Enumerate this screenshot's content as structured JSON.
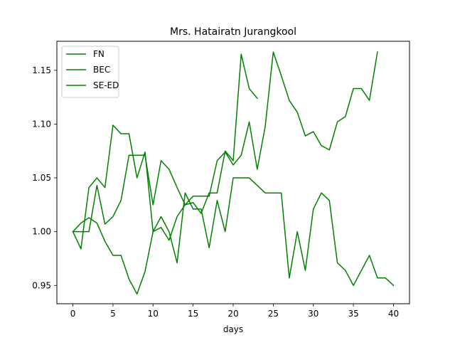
{
  "chart_data": {
    "type": "line",
    "title": "Mrs. Hatairatn Jurangkool",
    "xlabel": "days",
    "ylabel": "",
    "xlim": [
      -2,
      42
    ],
    "ylim": [
      0.933,
      1.177
    ],
    "xticks": [
      0,
      5,
      10,
      15,
      20,
      25,
      30,
      35,
      40
    ],
    "yticks": [
      0.95,
      1.0,
      1.05,
      1.1,
      1.15
    ],
    "ytick_labels": [
      "0.95",
      "1.00",
      "1.05",
      "1.10",
      "1.15"
    ],
    "grid": false,
    "legend_position": "upper-left",
    "line_color": "#008000",
    "series": [
      {
        "name": "FN",
        "x": [
          0,
          1,
          2,
          3,
          4,
          5,
          6,
          7,
          8,
          9,
          10,
          11,
          12,
          13,
          14,
          15,
          16,
          17,
          18,
          19,
          20,
          21,
          22,
          23
        ],
        "values": [
          1.0,
          1.0,
          1.0,
          1.043,
          1.007,
          1.014,
          1.029,
          1.071,
          1.071,
          1.071,
          1.025,
          1.066,
          1.058,
          1.041,
          1.025,
          1.027,
          1.017,
          1.036,
          1.036,
          1.075,
          1.066,
          1.165,
          1.133,
          1.124
        ]
      },
      {
        "name": "BEC",
        "x": [
          0,
          1,
          2,
          3,
          4,
          5,
          6,
          7,
          8,
          9,
          10,
          11,
          12,
          13,
          14,
          15,
          16,
          17,
          18,
          19,
          20,
          21,
          22,
          23,
          24,
          25,
          26,
          27,
          28,
          29,
          30,
          31,
          32,
          33,
          34,
          35,
          36,
          37,
          38
        ],
        "values": [
          1.0,
          0.984,
          1.041,
          1.05,
          1.041,
          1.099,
          1.091,
          1.091,
          1.05,
          1.074,
          1.0,
          1.004,
          0.992,
          1.014,
          1.025,
          1.033,
          1.033,
          1.033,
          1.066,
          1.074,
          1.062,
          1.071,
          1.102,
          1.058,
          1.098,
          1.167,
          1.145,
          1.122,
          1.111,
          1.089,
          1.093,
          1.08,
          1.076,
          1.102,
          1.107,
          1.133,
          1.133,
          1.122,
          1.167
        ]
      },
      {
        "name": "SE-ED",
        "x": [
          0,
          1,
          2,
          3,
          4,
          5,
          6,
          7,
          8,
          9,
          10,
          11,
          12,
          13,
          14,
          15,
          16,
          17,
          18,
          19,
          20,
          21,
          22,
          23,
          24,
          25,
          26,
          27,
          28,
          29,
          30,
          31,
          32,
          33,
          34,
          35,
          36,
          37,
          38,
          39,
          40
        ],
        "values": [
          1.0,
          1.008,
          1.013,
          1.008,
          0.991,
          0.978,
          0.978,
          0.956,
          0.942,
          0.963,
          1.0,
          1.014,
          1.0,
          0.971,
          1.036,
          1.021,
          1.021,
          0.985,
          1.029,
          1.0,
          1.05,
          1.05,
          1.05,
          1.043,
          1.036,
          1.036,
          1.036,
          0.957,
          1.0,
          0.964,
          1.021,
          1.036,
          1.029,
          0.971,
          0.964,
          0.95,
          0.964,
          0.978,
          0.957,
          0.957,
          0.95
        ]
      }
    ]
  }
}
